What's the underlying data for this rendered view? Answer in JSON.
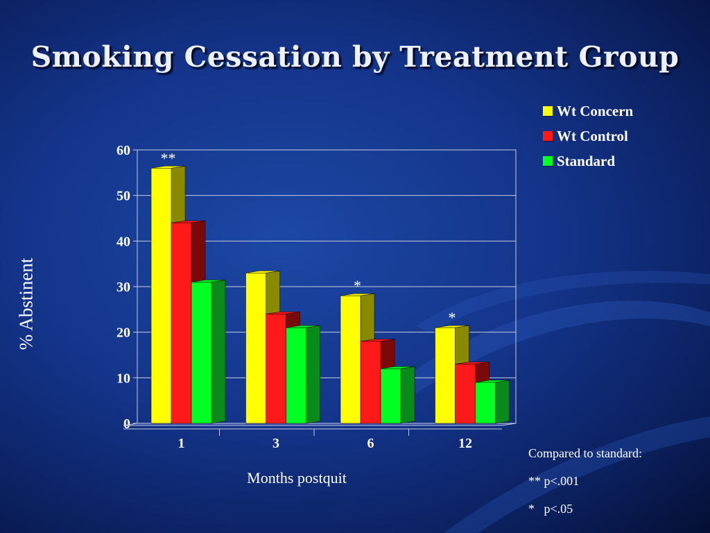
{
  "slide": {
    "title": "Smoking Cessation by Treatment Group",
    "footnotes": [
      "Compared to standard:",
      "** p<.001",
      "*   p<.05"
    ]
  },
  "colors": {
    "background": "#14348a",
    "Wt Concern": "#ffff00",
    "Wt Control": "#ff1a1a",
    "Standard": "#00ff22"
  },
  "chart_data": {
    "type": "bar",
    "title": "",
    "xlabel": "Months postquit",
    "ylabel": "% Abstinent",
    "ylim": [
      0,
      60
    ],
    "yticks": [
      "0",
      "10",
      "20",
      "30",
      "40",
      "50",
      "60"
    ],
    "categories": [
      "1",
      "3",
      "6",
      "12"
    ],
    "series": [
      {
        "name": "Wt Concern",
        "values": [
          56,
          33,
          28,
          21
        ]
      },
      {
        "name": "Wt Control",
        "values": [
          44,
          24,
          18,
          13
        ]
      },
      {
        "name": "Standard",
        "values": [
          31,
          21,
          12,
          9
        ]
      }
    ],
    "annotations": [
      {
        "category": "1",
        "text": "**"
      },
      {
        "category": "6",
        "text": "*"
      },
      {
        "category": "12",
        "text": "*"
      }
    ],
    "grid": true,
    "legend": "top-right",
    "style": "3d-bars"
  }
}
